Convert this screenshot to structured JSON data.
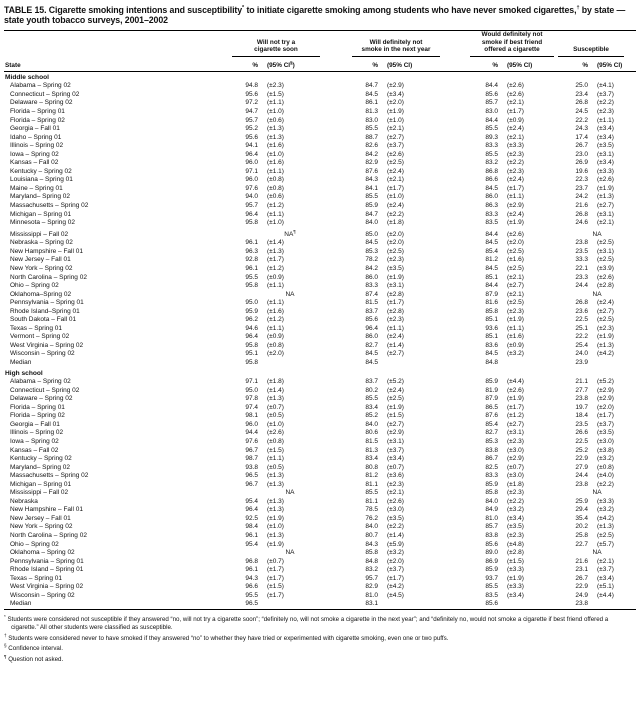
{
  "title": {
    "part1": "TABLE 15. Cigarette smoking intentions and susceptibility",
    "sup1": "*",
    "part2": " to initiate cigarette smoking among students who have never smoked cigarettes,",
    "sup2": "†",
    "part3": " by state — state youth tobacco surveys, 2001–2002"
  },
  "columns": {
    "state_label": "State",
    "groups": [
      {
        "title": "Will not try a\ncigarette soon",
        "pct": "%",
        "ci_pre": "(95% CI",
        "ci_sup": "§",
        "ci_post": ")"
      },
      {
        "title": "Will definitely not\nsmoke in the next year",
        "pct": "%",
        "ci": "(95% CI)"
      },
      {
        "title": "Would definitely not\nsmoke if best friend\noffered a cigarette",
        "pct": "%",
        "ci": "(95% CI)"
      },
      {
        "title": "Susceptible",
        "pct": "%",
        "ci": "(95% CI)"
      }
    ]
  },
  "sections": [
    {
      "label": "Middle school",
      "rows": [
        {
          "state": "Alabama – Spring 02",
          "c": [
            "94.8",
            "(±2.3)",
            "84.7",
            "(±2.9)",
            "84.4",
            "(±2.6)",
            "25.0",
            "(±4.1)"
          ]
        },
        {
          "state": "Connecticut – Spring 02",
          "c": [
            "95.6",
            "(±1.5)",
            "84.5",
            "(±3.4)",
            "85.6",
            "(±2.6)",
            "23.4",
            "(±3.7)"
          ]
        },
        {
          "state": "Delaware – Spring 02",
          "c": [
            "97.2",
            "(±1.1)",
            "86.1",
            "(±2.0)",
            "85.7",
            "(±2.1)",
            "26.8",
            "(±2.2)"
          ]
        },
        {
          "state": "Florida – Spring 01",
          "c": [
            "94.7",
            "(±1.0)",
            "81.3",
            "(±1.9)",
            "83.0",
            "(±1.7)",
            "24.5",
            "(±2.3)"
          ]
        },
        {
          "state": "Florida – Spring 02",
          "c": [
            "95.7",
            "(±0.6)",
            "83.0",
            "(±1.0)",
            "84.4",
            "(±0.9)",
            "22.2",
            "(±1.1)"
          ]
        },
        {
          "state": "Georgia – Fall 01",
          "c": [
            "95.2",
            "(±1.3)",
            "85.5",
            "(±2.1)",
            "85.5",
            "(±2.4)",
            "24.3",
            "(±3.4)"
          ]
        },
        {
          "state": "Idaho – Spring 01",
          "c": [
            "95.6",
            "(±1.3)",
            "88.7",
            "(±2.7)",
            "89.3",
            "(±2.1)",
            "17.4",
            "(±3.4)"
          ]
        },
        {
          "state": "Illinois – Spring 02",
          "c": [
            "94.1",
            "(±1.6)",
            "82.6",
            "(±3.7)",
            "83.3",
            "(±3.3)",
            "26.7",
            "(±3.5)"
          ]
        },
        {
          "state": "Iowa – Spring 02",
          "c": [
            "96.4",
            "(±1.0)",
            "84.2",
            "(±2.6)",
            "85.5",
            "(±2.3)",
            "23.0",
            "(±3.1)"
          ]
        },
        {
          "state": "Kansas – Fall 02",
          "c": [
            "96.0",
            "(±1.6)",
            "82.9",
            "(±2.5)",
            "83.2",
            "(±2.2)",
            "26.9",
            "(±3.4)"
          ]
        },
        {
          "state": "Kentucky – Spring 02",
          "c": [
            "97.1",
            "(±1.1)",
            "87.6",
            "(±2.4)",
            "86.8",
            "(±2.3)",
            "19.6",
            "(±3.3)"
          ]
        },
        {
          "state": "Louisiana – Spring 01",
          "c": [
            "96.0",
            "(±0.8)",
            "84.3",
            "(±2.1)",
            "86.6",
            "(±2.4)",
            "22.3",
            "(±2.6)"
          ]
        },
        {
          "state": "Maine – Spring 01",
          "c": [
            "97.6",
            "(±0.8)",
            "84.1",
            "(±1.7)",
            "84.5",
            "(±1.7)",
            "23.7",
            "(±1.9)"
          ]
        },
        {
          "state": "Maryland– Spring 02",
          "c": [
            "94.0",
            "(±0.6)",
            "85.5",
            "(±1.0)",
            "86.0",
            "(±1.1)",
            "24.2",
            "(±1.3)"
          ]
        },
        {
          "state": "Massachusetts – Spring 02",
          "c": [
            "95.7",
            "(±1.2)",
            "85.9",
            "(±2.4)",
            "86.3",
            "(±2.9)",
            "21.6",
            "(±2.7)"
          ]
        },
        {
          "state": "Michigan – Spring 01",
          "c": [
            "96.4",
            "(±1.1)",
            "84.7",
            "(±2.2)",
            "83.3",
            "(±2.4)",
            "26.8",
            "(±3.1)"
          ]
        },
        {
          "state": "Minnesota – Spring 02",
          "c": [
            "95.8",
            "(±1.0)",
            "84.0",
            "(±1.8)",
            "83.5",
            "(±1.9)",
            "24.6",
            "(±2.1)"
          ]
        },
        {
          "state": "Mississippi – Fall 02",
          "c": [
            "NA¶",
            "",
            "85.0",
            "(±2.0)",
            "84.4",
            "(±2.6)",
            "NA",
            ""
          ]
        },
        {
          "state": "Nebraska – Spring 02",
          "c": [
            "96.1",
            "(±1.4)",
            "84.5",
            "(±2.0)",
            "84.5",
            "(±2.0)",
            "23.8",
            "(±2.5)"
          ]
        },
        {
          "state": "New Hampshire – Fall 01",
          "c": [
            "96.3",
            "(±1.3)",
            "85.3",
            "(±2.5)",
            "85.4",
            "(±2.5)",
            "23.5",
            "(±3.1)"
          ]
        },
        {
          "state": "New Jersey – Fall 01",
          "c": [
            "92.8",
            "(±1.7)",
            "78.2",
            "(±2.3)",
            "81.2",
            "(±1.6)",
            "33.3",
            "(±2.5)"
          ]
        },
        {
          "state": "New York – Spring 02",
          "c": [
            "96.1",
            "(±1.2)",
            "84.2",
            "(±3.5)",
            "84.5",
            "(±2.5)",
            "22.1",
            "(±3.9)"
          ]
        },
        {
          "state": "North Carolina – Spring 02",
          "c": [
            "95.5",
            "(±0.9)",
            "86.0",
            "(±1.9)",
            "85.1",
            "(±2.1)",
            "23.3",
            "(±2.6)"
          ]
        },
        {
          "state": "Ohio – Spring 02",
          "c": [
            "95.8",
            "(±1.1)",
            "83.3",
            "(±3.1)",
            "84.4",
            "(±2.7)",
            "24.4",
            "(±2.8)"
          ]
        },
        {
          "state": "Oklahoma–Spring 02",
          "c": [
            "NA",
            "",
            "87.4",
            "(±2.8)",
            "87.9",
            "(±2.1)",
            "NA",
            ""
          ]
        },
        {
          "state": "Pennsylvania – Spring 01",
          "c": [
            "95.0",
            "(±1.1)",
            "81.5",
            "(±1.7)",
            "81.6",
            "(±2.5)",
            "26.8",
            "(±2.4)"
          ]
        },
        {
          "state": "Rhode Island–Spring 01",
          "c": [
            "95.9",
            "(±1.6)",
            "83.7",
            "(±2.8)",
            "85.8",
            "(±2.3)",
            "23.6",
            "(±2.7)"
          ]
        },
        {
          "state": "South Dakota – Fall 01",
          "c": [
            "96.2",
            "(±1.2)",
            "85.6",
            "(±2.3)",
            "85.1",
            "(±1.9)",
            "22.5",
            "(±2.5)"
          ]
        },
        {
          "state": "Texas – Spring 01",
          "c": [
            "94.6",
            "(±1.1)",
            "96.4",
            "(±1.1)",
            "93.6",
            "(±1.1)",
            "25.1",
            "(±2.3)"
          ]
        },
        {
          "state": "Vermont – Spring 02",
          "c": [
            "96.4",
            "(±0.9)",
            "86.0",
            "(±2.4)",
            "85.1",
            "(±1.6)",
            "22.2",
            "(±1.9)"
          ]
        },
        {
          "state": "West Virginia – Spring 02",
          "c": [
            "95.8",
            "(±0.8)",
            "82.7",
            "(±1.4)",
            "83.6",
            "(±0.9)",
            "25.4",
            "(±1.3)"
          ]
        },
        {
          "state": "Wisconsin – Spring 02",
          "c": [
            "95.1",
            "(±2.0)",
            "84.5",
            "(±2.7)",
            "84.5",
            "(±3.2)",
            "24.0",
            "(±4.2)"
          ]
        },
        {
          "state": "Median",
          "c": [
            "95.8",
            "",
            "84.5",
            "",
            "84.8",
            "",
            "23.9",
            ""
          ]
        }
      ]
    },
    {
      "label": "High school",
      "rows": [
        {
          "state": "Alabama – Spring 02",
          "c": [
            "97.1",
            "(±1.8)",
            "83.7",
            "(±5.2)",
            "85.9",
            "(±4.4)",
            "21.1",
            "(±5.2)"
          ]
        },
        {
          "state": "Connecticut – Spring 02",
          "c": [
            "95.0",
            "(±1.4)",
            "80.2",
            "(±2.4)",
            "81.9",
            "(±2.6)",
            "27.7",
            "(±2.9)"
          ]
        },
        {
          "state": "Delaware – Spring 02",
          "c": [
            "97.8",
            "(±1.3)",
            "85.5",
            "(±2.5)",
            "87.9",
            "(±1.9)",
            "23.8",
            "(±2.9)"
          ]
        },
        {
          "state": "Florida – Spring 01",
          "c": [
            "97.4",
            "(±0.7)",
            "83.4",
            "(±1.9)",
            "86.5",
            "(±1.7)",
            "19.7",
            "(±2.0)"
          ]
        },
        {
          "state": "Florida – Spring 02",
          "c": [
            "98.1",
            "(±0.5)",
            "85.2",
            "(±1.5)",
            "87.6",
            "(±1.2)",
            "18.4",
            "(±1.7)"
          ]
        },
        {
          "state": "Georgia – Fall 01",
          "c": [
            "96.0",
            "(±1.0)",
            "84.0",
            "(±2.7)",
            "85.4",
            "(±2.7)",
            "23.5",
            "(±3.7)"
          ]
        },
        {
          "state": "Illinois – Spring 02",
          "c": [
            "94.4",
            "(±2.6)",
            "80.6",
            "(±2.9)",
            "82.7",
            "(±3.1)",
            "26.6",
            "(±3.5)"
          ]
        },
        {
          "state": "Iowa – Spring 02",
          "c": [
            "97.6",
            "(±0.8)",
            "81.5",
            "(±3.1)",
            "85.3",
            "(±2.3)",
            "22.5",
            "(±3.0)"
          ]
        },
        {
          "state": "Kansas – Fall 02",
          "c": [
            "96.7",
            "(±1.5)",
            "81.3",
            "(±3.7)",
            "83.8",
            "(±3.0)",
            "25.2",
            "(±3.8)"
          ]
        },
        {
          "state": "Kentucky – Spring 02",
          "c": [
            "98.7",
            "(±1.1)",
            "83.4",
            "(±3.4)",
            "86.7",
            "(±2.9)",
            "22.9",
            "(±3.2)"
          ]
        },
        {
          "state": "Maryland– Spring 02",
          "c": [
            "93.8",
            "(±0.5)",
            "80.8",
            "(±0.7)",
            "82.5",
            "(±0.7)",
            "27.9",
            "(±0.8)"
          ]
        },
        {
          "state": "Massachusetts – Spring 02",
          "c": [
            "96.5",
            "(±1.3)",
            "81.2",
            "(±3.6)",
            "83.3",
            "(±3.0)",
            "24.4",
            "(±4.0)"
          ]
        },
        {
          "state": "Michigan – Spring 01",
          "c": [
            "96.7",
            "(±1.3)",
            "81.1",
            "(±2.3)",
            "85.9",
            "(±1.8)",
            "23.8",
            "(±2.2)"
          ]
        },
        {
          "state": "Mississippi – Fall 02",
          "c": [
            "NA",
            "",
            "85.5",
            "(±2.1)",
            "85.8",
            "(±2.3)",
            "NA",
            ""
          ]
        },
        {
          "state": "Nebraska",
          "c": [
            "95.4",
            "(±1.3)",
            "81.1",
            "(±2.6)",
            "84.0",
            "(±2.2)",
            "25.9",
            "(±3.3)"
          ]
        },
        {
          "state": "New Hampshire – Fall 01",
          "c": [
            "96.4",
            "(±1.3)",
            "78.5",
            "(±3.0)",
            "84.9",
            "(±3.2)",
            "29.4",
            "(±3.2)"
          ]
        },
        {
          "state": "New Jersey – Fall 01",
          "c": [
            "92.5",
            "(±1.9)",
            "76.2",
            "(±3.5)",
            "81.0",
            "(±3.4)",
            "35.4",
            "(±4.2)"
          ]
        },
        {
          "state": "New York – Spring 02",
          "c": [
            "98.4",
            "(±1.0)",
            "84.0",
            "(±2.2)",
            "85.7",
            "(±3.5)",
            "20.2",
            "(±1.3)"
          ]
        },
        {
          "state": "North Carolina – Spring 02",
          "c": [
            "96.1",
            "(±1.3)",
            "80.7",
            "(±1.4)",
            "83.8",
            "(±2.3)",
            "25.8",
            "(±2.5)"
          ]
        },
        {
          "state": "Ohio – Spring 02",
          "c": [
            "95.4",
            "(±1.9)",
            "84.3",
            "(±5.9)",
            "85.6",
            "(±4.8)",
            "22.7",
            "(±5.7)"
          ]
        },
        {
          "state": "Oklahoma – Spring 02",
          "c": [
            "NA",
            "",
            "85.8",
            "(±3.2)",
            "89.0",
            "(±2.8)",
            "NA",
            ""
          ]
        },
        {
          "state": "Pennsylvania – Spring 01",
          "c": [
            "96.8",
            "(±0.7)",
            "84.8",
            "(±2.0)",
            "86.9",
            "(±1.5)",
            "21.6",
            "(±2.1)"
          ]
        },
        {
          "state": "Rhode Island – Spring 01",
          "c": [
            "96.1",
            "(±1.7)",
            "83.2",
            "(±3.7)",
            "85.9",
            "(±3.3)",
            "23.1",
            "(±3.7)"
          ]
        },
        {
          "state": "Texas – Spring 01",
          "c": [
            "94.3",
            "(±1.7)",
            "95.7",
            "(±1.7)",
            "93.7",
            "(±1.9)",
            "26.7",
            "(±3.4)"
          ]
        },
        {
          "state": "West Virginia – Spring 02",
          "c": [
            "96.6",
            "(±1.5)",
            "82.9",
            "(±4.2)",
            "85.5",
            "(±3.3)",
            "22.9",
            "(±5.1)"
          ]
        },
        {
          "state": "Wisconsin – Spring 02",
          "c": [
            "95.5",
            "(±1.7)",
            "81.0",
            "(±4.5)",
            "83.5",
            "(±3.4)",
            "24.9",
            "(±4.4)"
          ]
        },
        {
          "state": "Median",
          "c": [
            "96.5",
            "",
            "83.1",
            "",
            "85.6",
            "",
            "23.8",
            ""
          ]
        }
      ]
    }
  ],
  "footnotes": [
    {
      "marker": "*",
      "text": "Students were considered not susceptible if they answered “no, will not try a cigarette soon”; “definitely no, will not smoke a cigarette in the next year”; and “definitely no, would not smoke a cigarette if best friend offered a cigarette.” All other students were classified as susceptible."
    },
    {
      "marker": "†",
      "text": "Students were considered never to have smoked if they answered “no” to whether they have tried or experimented with cigarette smoking, even one or two puffs."
    },
    {
      "marker": "§",
      "text": "Confidence interval."
    },
    {
      "marker": "¶",
      "text": "Question not asked."
    }
  ]
}
